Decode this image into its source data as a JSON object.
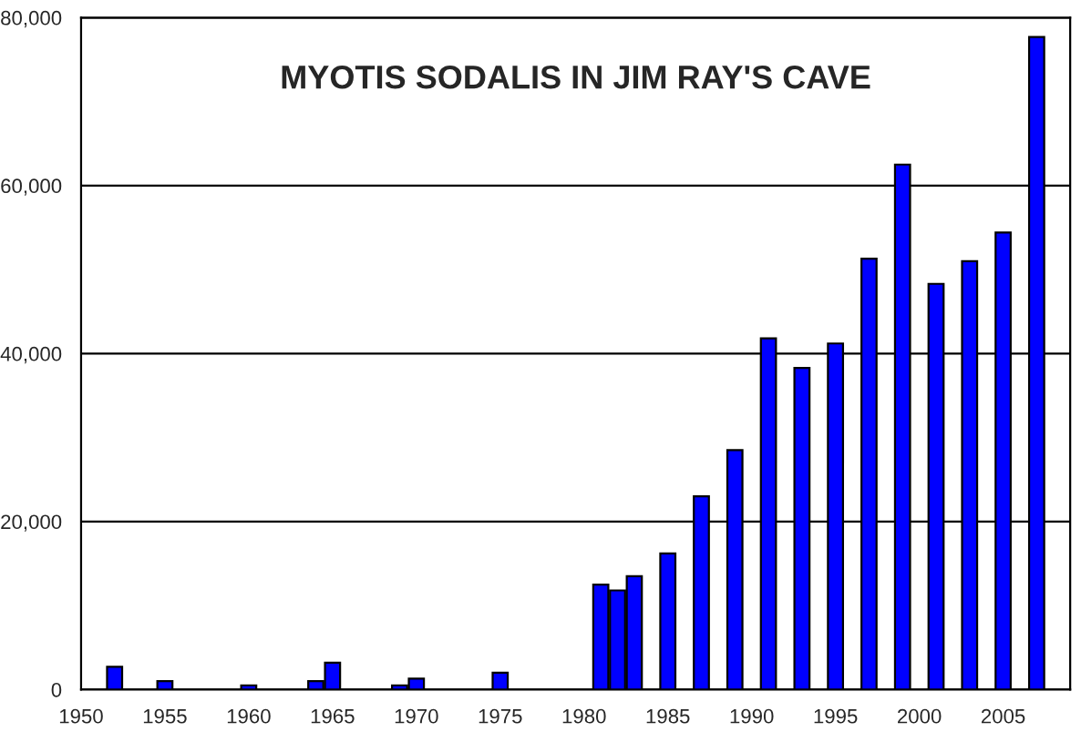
{
  "chart_data": {
    "type": "bar",
    "title": "MYOTIS SODALIS IN JIM RAY'S CAVE",
    "x": [
      1952,
      1955,
      1960,
      1964,
      1965,
      1969,
      1970,
      1975,
      1981,
      1982,
      1983,
      1985,
      1987,
      1989,
      1991,
      1993,
      1995,
      1997,
      1999,
      2001,
      2003,
      2005,
      2007
    ],
    "values": [
      2700,
      1000,
      500,
      1000,
      3200,
      500,
      1300,
      2000,
      12500,
      11800,
      13500,
      16200,
      23000,
      28500,
      41800,
      38300,
      41200,
      51300,
      62500,
      48300,
      51000,
      54400,
      77700
    ],
    "color": "#0000ff",
    "xlim": [
      1950,
      2009
    ],
    "xticks": [
      1950,
      1955,
      1960,
      1965,
      1970,
      1975,
      1980,
      1985,
      1990,
      1995,
      2000,
      2005
    ],
    "ylim": [
      0,
      80000
    ],
    "yticks": [
      0,
      {
        "value": 20000,
        "label": "20,000"
      },
      {
        "value": 40000,
        "label": "40,000"
      },
      {
        "value": 60000,
        "label": "60,000"
      },
      {
        "value": 80000,
        "label": "80,000"
      }
    ],
    "grid": "y",
    "legend": false
  }
}
